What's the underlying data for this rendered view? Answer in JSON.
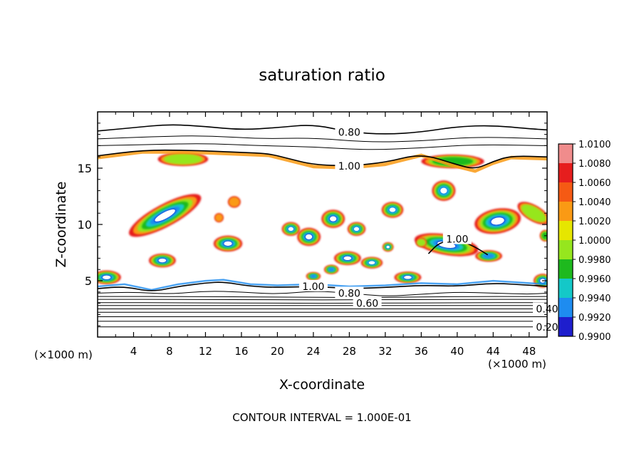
{
  "chart_data": {
    "type": "heatmap",
    "title": "saturation ratio",
    "xlabel": "X-coordinate",
    "ylabel": "Z-coordinate",
    "x_unit_left": "(×1000 m)",
    "x_unit_right": "(×1000 m)",
    "xlim": [
      0,
      50
    ],
    "ylim": [
      0,
      20
    ],
    "x_ticks": [
      4,
      8,
      12,
      16,
      20,
      24,
      28,
      32,
      36,
      40,
      44,
      48
    ],
    "y_ticks": [
      5,
      10,
      15
    ],
    "contour_interval_text": "CONTOUR INTERVAL = 1.000E-01",
    "colorbar": {
      "labels": [
        "1.0100",
        "1.0080",
        "1.0060",
        "1.0040",
        "1.0020",
        "1.0000",
        "0.9980",
        "0.9960",
        "0.9940",
        "0.9920",
        "0.9900"
      ],
      "colors": [
        "#f08c8c",
        "#e61e1e",
        "#f55a14",
        "#fa9a14",
        "#e6e600",
        "#96e61e",
        "#1eb91e",
        "#14c8c8",
        "#1e8cf0",
        "#1e1ecd",
        "#4b148c"
      ]
    },
    "line_contours": [
      {
        "label": "0.80",
        "points": [
          [
            0,
            18.3
          ],
          [
            4,
            18.6
          ],
          [
            8,
            18.9
          ],
          [
            12,
            18.7
          ],
          [
            16,
            18.4
          ],
          [
            20,
            18.6
          ],
          [
            24,
            18.9
          ],
          [
            28,
            18.2
          ],
          [
            32,
            18.0
          ],
          [
            36,
            18.2
          ],
          [
            40,
            18.7
          ],
          [
            44,
            18.8
          ],
          [
            48,
            18.5
          ],
          [
            50,
            18.4
          ]
        ]
      },
      {
        "label": "",
        "points": [
          [
            0,
            17.6
          ],
          [
            6,
            17.8
          ],
          [
            12,
            17.9
          ],
          [
            18,
            17.6
          ],
          [
            24,
            17.7
          ],
          [
            30,
            17.3
          ],
          [
            36,
            17.4
          ],
          [
            42,
            17.8
          ],
          [
            50,
            17.6
          ]
        ]
      },
      {
        "label": "",
        "points": [
          [
            0,
            17.0
          ],
          [
            6,
            17.1
          ],
          [
            12,
            17.2
          ],
          [
            18,
            17.0
          ],
          [
            24,
            16.9
          ],
          [
            30,
            16.6
          ],
          [
            36,
            16.8
          ],
          [
            42,
            17.1
          ],
          [
            50,
            17.0
          ]
        ]
      },
      {
        "label": "1.00",
        "points": [
          [
            0,
            16.1
          ],
          [
            5,
            16.6
          ],
          [
            10,
            16.6
          ],
          [
            16,
            16.4
          ],
          [
            19,
            16.3
          ],
          [
            21,
            15.9
          ],
          [
            24,
            15.3
          ],
          [
            28,
            15.2
          ],
          [
            32,
            15.5
          ],
          [
            36,
            16.3
          ],
          [
            40,
            15.3
          ],
          [
            42,
            14.9
          ],
          [
            44,
            15.6
          ],
          [
            46,
            16.1
          ],
          [
            50,
            16.0
          ]
        ]
      },
      {
        "label": "1.00",
        "points": [
          [
            0,
            4.3
          ],
          [
            3,
            4.5
          ],
          [
            6,
            4.0
          ],
          [
            9,
            4.5
          ],
          [
            12,
            4.8
          ],
          [
            14,
            4.9
          ],
          [
            17,
            4.5
          ],
          [
            20,
            4.4
          ],
          [
            24,
            4.5
          ],
          [
            28,
            4.3
          ],
          [
            32,
            4.4
          ],
          [
            36,
            4.6
          ],
          [
            40,
            4.5
          ],
          [
            44,
            4.8
          ],
          [
            48,
            4.6
          ],
          [
            50,
            4.5
          ]
        ]
      },
      {
        "label": "0.80",
        "points": [
          [
            0,
            3.9
          ],
          [
            4,
            4.0
          ],
          [
            8,
            3.8
          ],
          [
            12,
            4.1
          ],
          [
            16,
            4.0
          ],
          [
            20,
            3.8
          ],
          [
            24,
            4.1
          ],
          [
            28,
            3.9
          ],
          [
            32,
            3.6
          ],
          [
            36,
            3.8
          ],
          [
            40,
            4.0
          ],
          [
            44,
            3.9
          ],
          [
            48,
            3.8
          ],
          [
            50,
            3.9
          ]
        ]
      },
      {
        "label": "",
        "points": [
          [
            0,
            3.6
          ],
          [
            10,
            3.6
          ],
          [
            20,
            3.55
          ],
          [
            30,
            3.5
          ],
          [
            40,
            3.6
          ],
          [
            50,
            3.6
          ]
        ]
      },
      {
        "label": "",
        "points": [
          [
            0,
            3.35
          ],
          [
            10,
            3.35
          ],
          [
            20,
            3.3
          ],
          [
            30,
            3.3
          ],
          [
            40,
            3.35
          ],
          [
            50,
            3.35
          ]
        ]
      },
      {
        "label": "0.60",
        "points": [
          [
            0,
            3.05
          ],
          [
            10,
            3.05
          ],
          [
            20,
            3.0
          ],
          [
            30,
            3.0
          ],
          [
            40,
            3.05
          ],
          [
            50,
            3.05
          ]
        ]
      },
      {
        "label": "",
        "points": [
          [
            0,
            2.8
          ],
          [
            50,
            2.8
          ]
        ]
      },
      {
        "label": "0.40",
        "points": [
          [
            0,
            2.5
          ],
          [
            50,
            2.5
          ]
        ]
      },
      {
        "label": "",
        "points": [
          [
            0,
            2.2
          ],
          [
            50,
            2.2
          ]
        ]
      },
      {
        "label": "",
        "points": [
          [
            0,
            1.8
          ],
          [
            50,
            1.8
          ]
        ]
      },
      {
        "label": "",
        "points": [
          [
            0,
            1.4
          ],
          [
            50,
            1.4
          ]
        ]
      },
      {
        "label": "0.20",
        "points": [
          [
            0,
            0.9
          ],
          [
            50,
            0.9
          ]
        ]
      },
      {
        "label": "1.00",
        "points": [
          [
            36.8,
            7.4
          ],
          [
            38,
            8.4
          ],
          [
            40,
            8.7
          ],
          [
            42,
            8.0
          ],
          [
            43.4,
            7.3
          ]
        ]
      }
    ],
    "features": [
      {
        "x": 7.5,
        "z": 10.8,
        "rx": 4.5,
        "rz": 1.0,
        "angle": 28,
        "level": 1.0
      },
      {
        "x": 9.5,
        "z": 15.8,
        "rx": 2.8,
        "rz": 0.6,
        "angle": 0,
        "level": 0.35
      },
      {
        "x": 14.5,
        "z": 8.3,
        "rx": 1.6,
        "rz": 0.7,
        "angle": 0,
        "level": 0.85
      },
      {
        "x": 21.5,
        "z": 9.6,
        "rx": 1.0,
        "rz": 0.6,
        "angle": 0,
        "level": 0.75
      },
      {
        "x": 23.5,
        "z": 8.9,
        "rx": 1.3,
        "rz": 0.8,
        "angle": 0,
        "level": 0.95
      },
      {
        "x": 26.2,
        "z": 10.5,
        "rx": 1.3,
        "rz": 0.8,
        "angle": 0,
        "level": 0.95
      },
      {
        "x": 28.8,
        "z": 9.6,
        "rx": 1.0,
        "rz": 0.6,
        "angle": 0,
        "level": 0.75
      },
      {
        "x": 32.8,
        "z": 11.3,
        "rx": 1.2,
        "rz": 0.7,
        "angle": 0,
        "level": 0.75
      },
      {
        "x": 38.5,
        "z": 13.0,
        "rx": 1.3,
        "rz": 0.9,
        "angle": 0,
        "level": 0.8
      },
      {
        "x": 44.5,
        "z": 10.3,
        "rx": 2.6,
        "rz": 1.1,
        "angle": 10,
        "level": 1.0
      },
      {
        "x": 48.5,
        "z": 11.0,
        "rx": 2.0,
        "rz": 0.7,
        "angle": -30,
        "level": 0.4
      },
      {
        "x": 38.8,
        "z": 8.2,
        "rx": 3.6,
        "rz": 0.9,
        "angle": -10,
        "level": 0.95
      },
      {
        "x": 43.5,
        "z": 7.2,
        "rx": 1.5,
        "rz": 0.5,
        "angle": 0,
        "level": 0.7
      },
      {
        "x": 27.8,
        "z": 7.0,
        "rx": 1.5,
        "rz": 0.6,
        "angle": 0,
        "level": 0.95
      },
      {
        "x": 30.5,
        "z": 6.6,
        "rx": 1.2,
        "rz": 0.5,
        "angle": 0,
        "level": 0.8
      },
      {
        "x": 32.3,
        "z": 8.0,
        "rx": 0.6,
        "rz": 0.4,
        "angle": 0,
        "level": 0.75
      },
      {
        "x": 34.5,
        "z": 5.3,
        "rx": 1.5,
        "rz": 0.5,
        "angle": 0,
        "level": 0.9
      },
      {
        "x": 7.2,
        "z": 6.8,
        "rx": 1.5,
        "rz": 0.6,
        "angle": 0,
        "level": 0.9
      },
      {
        "x": 26.0,
        "z": 6.0,
        "rx": 0.8,
        "rz": 0.4,
        "angle": 0,
        "level": 0.7
      },
      {
        "x": 1.0,
        "z": 5.3,
        "rx": 1.6,
        "rz": 0.6,
        "angle": 0,
        "level": 0.9
      },
      {
        "x": 49.5,
        "z": 5.0,
        "rx": 1.0,
        "rz": 0.6,
        "angle": 0,
        "level": 0.9
      },
      {
        "x": 24.0,
        "z": 5.4,
        "rx": 0.8,
        "rz": 0.35,
        "angle": 0,
        "level": 0.7
      },
      {
        "x": 15.2,
        "z": 12.0,
        "rx": 0.7,
        "rz": 0.5,
        "angle": 0,
        "level": 0.25
      },
      {
        "x": 13.5,
        "z": 10.6,
        "rx": 0.5,
        "rz": 0.4,
        "angle": 0,
        "level": 0.2
      },
      {
        "x": 49.8,
        "z": 9.0,
        "rx": 0.6,
        "rz": 0.5,
        "angle": 0,
        "level": 0.5
      },
      {
        "x": 36.0,
        "z": 8.4,
        "rx": 0.6,
        "rz": 0.4,
        "angle": 0,
        "level": 0.4
      },
      {
        "x": 39.5,
        "z": 15.6,
        "rx": 3.5,
        "rz": 0.6,
        "angle": 0,
        "level": 0.45
      }
    ]
  }
}
